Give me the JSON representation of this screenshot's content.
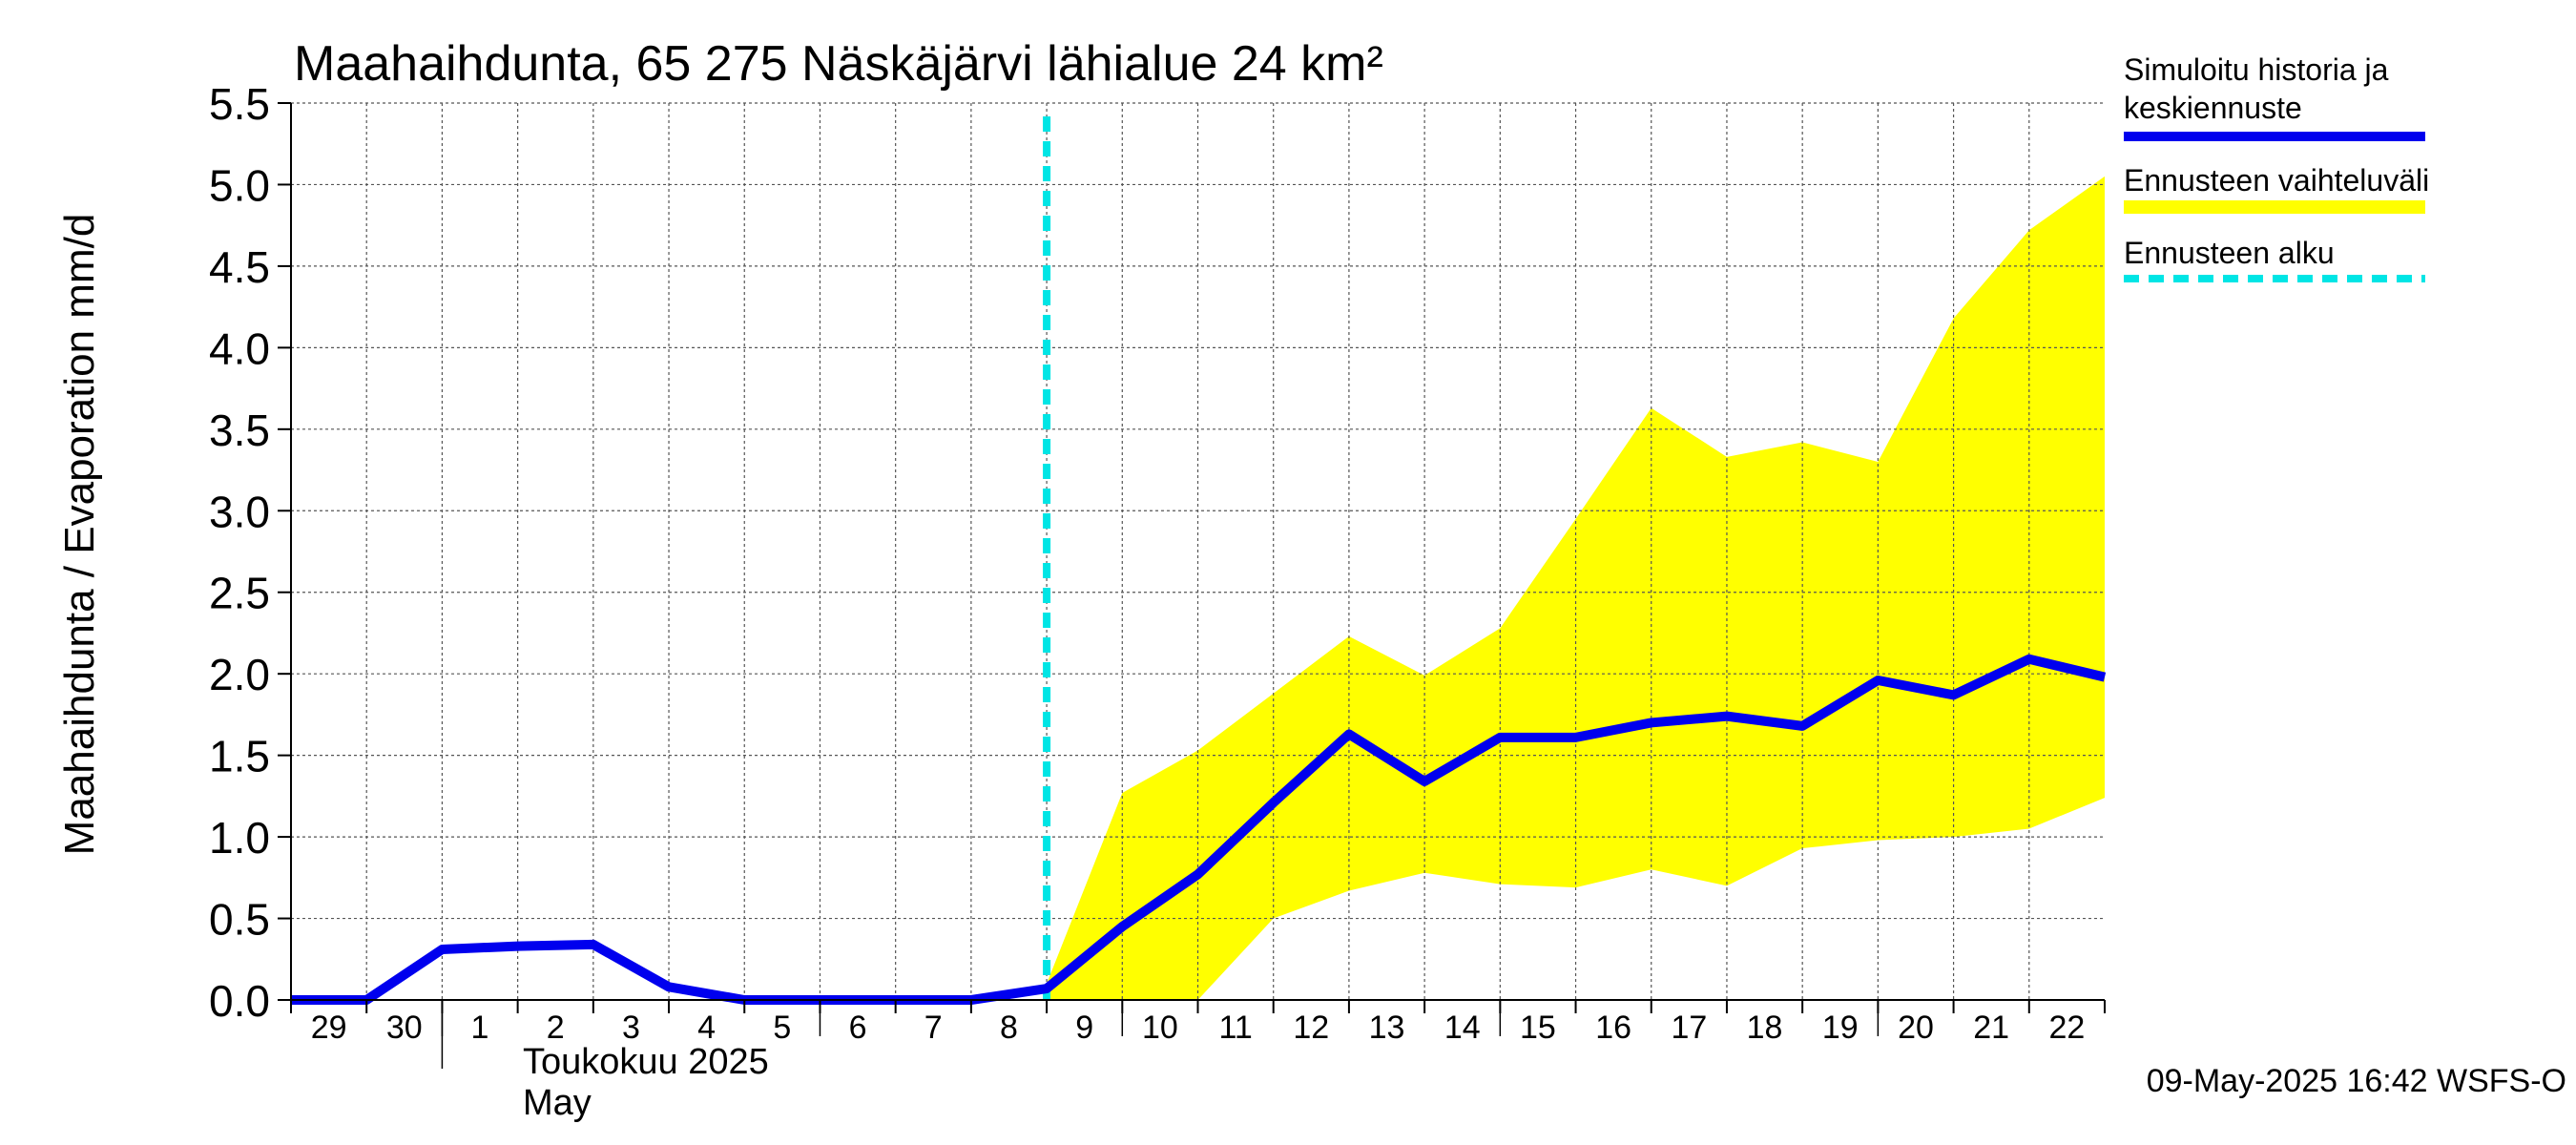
{
  "chart_data": {
    "type": "line",
    "title": "Maahaihdunta, 65 275 Näskäjärvi lähialue 24 km²",
    "ylabel": "Maahaihdunta / Evaporation   mm/d",
    "ylim": [
      0,
      5.5
    ],
    "yticks": [
      "0.0",
      "0.5",
      "1.0",
      "1.5",
      "2.0",
      "2.5",
      "3.0",
      "3.5",
      "4.0",
      "4.5",
      "5.0",
      "5.5"
    ],
    "xlim": [
      0,
      24
    ],
    "x_tick_labels": [
      "29",
      "30",
      "1",
      "2",
      "3",
      "4",
      "5",
      "6",
      "7",
      "8",
      "9",
      "10",
      "11",
      "12",
      "13",
      "14",
      "15",
      "16",
      "17",
      "18",
      "19",
      "20",
      "21",
      "22"
    ],
    "month_label_fi": "Toukokuu  2025",
    "month_label_en": "May",
    "forecast_start_x": 10,
    "series": [
      {
        "name": "Simuloitu historia ja keskiennuste",
        "color": "#0000ee",
        "x": [
          0,
          1,
          2,
          3,
          4,
          5,
          6,
          7,
          8,
          9,
          10,
          11,
          12,
          13,
          14,
          15,
          16,
          17,
          18,
          19,
          20,
          21,
          22,
          23,
          24
        ],
        "values": [
          0.0,
          0.0,
          0.31,
          0.33,
          0.34,
          0.08,
          0.0,
          0.0,
          0.0,
          0.0,
          0.07,
          0.45,
          0.77,
          1.21,
          1.63,
          1.34,
          1.61,
          1.61,
          1.7,
          1.74,
          1.68,
          1.96,
          1.87,
          2.09,
          1.98
        ]
      }
    ],
    "band": {
      "name": "Ennusteen vaihteluväli",
      "color": "#ffff00",
      "x": [
        10,
        11,
        12,
        13,
        14,
        15,
        16,
        17,
        18,
        19,
        20,
        21,
        22,
        23,
        24
      ],
      "upper": [
        0.1,
        1.27,
        1.53,
        1.88,
        2.23,
        1.99,
        2.28,
        2.95,
        3.63,
        3.33,
        3.42,
        3.3,
        4.18,
        4.72,
        5.05
      ],
      "lower": [
        0.0,
        0.0,
        0.0,
        0.5,
        0.67,
        0.78,
        0.71,
        0.69,
        0.8,
        0.7,
        0.93,
        0.98,
        1.0,
        1.05,
        1.24
      ]
    },
    "legend": {
      "items": [
        {
          "label_lines": [
            "Simuloitu historia ja",
            "keskiennuste"
          ],
          "color": "#0000ee",
          "style": "solid"
        },
        {
          "label_lines": [
            "Ennusteen vaihteluväli"
          ],
          "color": "#ffff00",
          "style": "solid"
        },
        {
          "label_lines": [
            "Ennusteen alku"
          ],
          "color": "#00e5e5",
          "style": "dashed"
        }
      ]
    },
    "footer": "09-May-2025 16:42 WSFS-O"
  }
}
